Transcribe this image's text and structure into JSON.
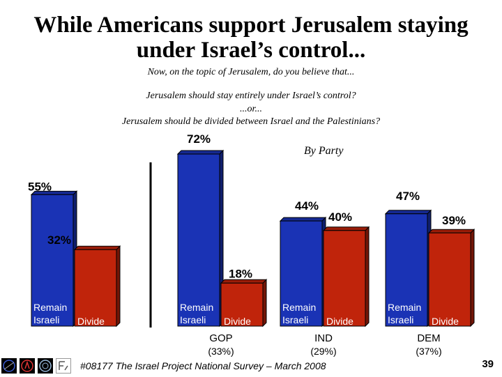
{
  "title_line1": "While Americans support Jerusalem staying",
  "title_line2": "under Israel’s control...",
  "question_intro": "Now, on the topic of Jerusalem, do you believe that...",
  "option_a": "Jerusalem should stay entirely under Israel’s control?",
  "option_or": "...or...",
  "option_b": "Jerusalem should be divided between Israel and the Palestinians?",
  "by_party": "By Party",
  "footer": "#08177 The Israel Project National Survey – March 2008",
  "page_number": "39",
  "colors": {
    "remain": "#1a33b5",
    "divide": "#c0240b",
    "outline": "#000000"
  },
  "chart_data": {
    "type": "bar",
    "title": "While Americans support Jerusalem staying under Israel’s control...",
    "series_names": [
      "Remain Israeli",
      "Divide"
    ],
    "groups": [
      {
        "name": "",
        "share": "",
        "labels": [
          "Remain Israeli",
          "Divide"
        ],
        "values": [
          55,
          32
        ],
        "value_labels": [
          "55%",
          "32%"
        ]
      },
      {
        "name": "GOP",
        "share": "(33%)",
        "labels": [
          "Remain Israeli",
          "Divide"
        ],
        "values": [
          72,
          18
        ],
        "value_labels": [
          "72%",
          "18%"
        ]
      },
      {
        "name": "IND",
        "share": "(29%)",
        "labels": [
          "Remain Israeli",
          "Divide"
        ],
        "values": [
          44,
          40
        ],
        "value_labels": [
          "44%",
          "40%"
        ]
      },
      {
        "name": "DEM",
        "share": "(37%)",
        "labels": [
          "Remain Israeli",
          "Divide"
        ],
        "values": [
          47,
          39
        ],
        "value_labels": [
          "47%",
          "39%"
        ]
      }
    ],
    "ylim": [
      0,
      80
    ],
    "legend": "none"
  }
}
